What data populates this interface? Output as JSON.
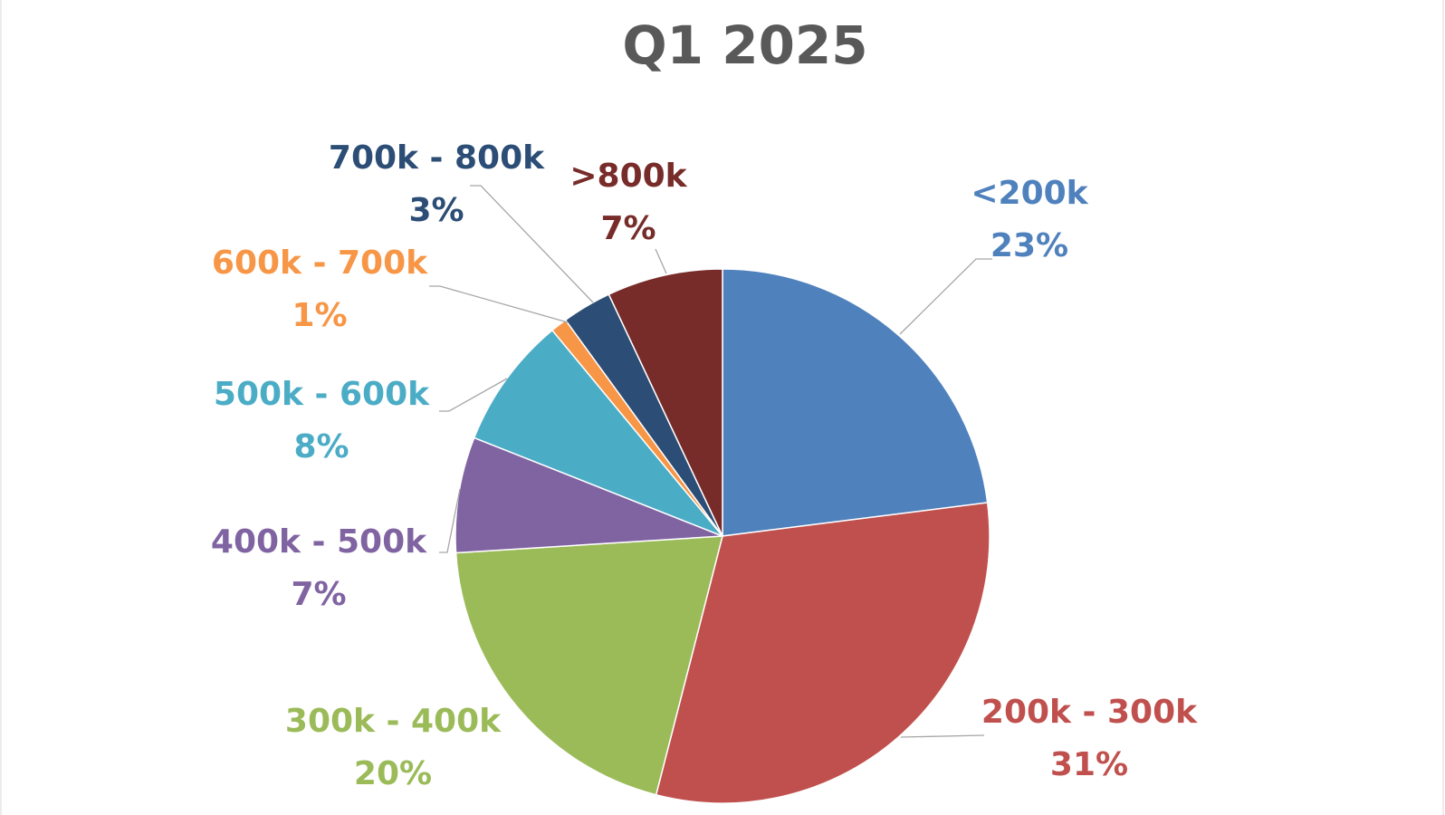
{
  "chart_data": {
    "type": "pie",
    "title": "Q1 2025",
    "start_angle_deg": 0,
    "direction": "clockwise",
    "slices": [
      {
        "label": "<200k",
        "value": 23,
        "percent_label": "23%",
        "color": "#4F81BD"
      },
      {
        "label": "200k - 300k",
        "value": 31,
        "percent_label": "31%",
        "color": "#C0504D"
      },
      {
        "label": "300k - 400k",
        "value": 20,
        "percent_label": "20%",
        "color": "#9BBB59"
      },
      {
        "label": "400k - 500k",
        "value": 7,
        "percent_label": "7%",
        "color": "#8064A2"
      },
      {
        "label": "500k - 600k",
        "value": 8,
        "percent_label": "8%",
        "color": "#4BACC6"
      },
      {
        "label": "600k - 700k",
        "value": 1,
        "percent_label": "1%",
        "color": "#F79646"
      },
      {
        "label": "700k - 800k",
        "value": 3,
        "percent_label": "3%",
        "color": "#2C4D75"
      },
      {
        "label": ">800k",
        "value": 7,
        "percent_label": "7%",
        "color": "#772C2A"
      }
    ],
    "data_labels": "outside-with-leader-lines",
    "legend": "none"
  }
}
